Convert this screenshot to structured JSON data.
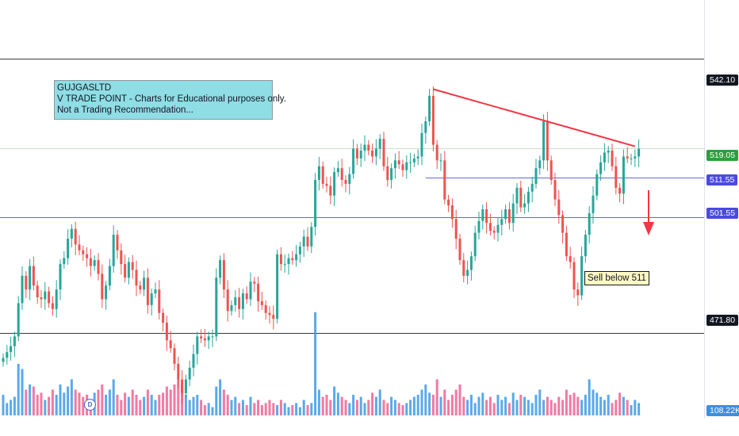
{
  "annotation_box": {
    "line1": "GUJGASLTD",
    "line2": "V TRADE POINT - Charts for Educational purposes only.",
    "line3": "Not a Trading Recommendation..."
  },
  "callout": {
    "text": "Sell below 511"
  },
  "dividend_marker": {
    "text": "D"
  },
  "price_scale": {
    "tags": [
      {
        "label": "542.10",
        "color": "#131722"
      },
      {
        "label": "519.05",
        "color": "#2e9e3e"
      },
      {
        "label": "511.55",
        "color": "#4a4ae0"
      },
      {
        "label": "501.55",
        "color": "#4a4ae0"
      },
      {
        "label": "471.80",
        "color": "#131722"
      }
    ],
    "volume_label": "108.22K"
  },
  "chart_data": {
    "type": "candlestick",
    "ylim": [
      450,
      557
    ],
    "horizontal_lines": [
      {
        "price": 542.1,
        "color": "#131722",
        "style": "full"
      },
      {
        "price": 519.05,
        "color": "#2e9e3e",
        "style": "full-thin"
      },
      {
        "price": 511.55,
        "color": "#4a4ae0",
        "style": "partial"
      },
      {
        "price": 501.55,
        "color": "#4a4ae0",
        "style": "full"
      },
      {
        "price": 471.8,
        "color": "#131722",
        "style": "full"
      }
    ],
    "trendline": {
      "from_bar": 113,
      "from_price": 534.2,
      "to_bar": 166,
      "to_price": 519.6,
      "color": "#f23645"
    },
    "colors": {
      "up": "#26a69a",
      "down": "#ef5350",
      "up_volume": "#3d9ae6",
      "down_volume": "#f06292"
    },
    "close": [
      465.5,
      467.0,
      468.5,
      471.0,
      479.5,
      486.5,
      483.0,
      489.0,
      484.0,
      481.0,
      480.5,
      482.5,
      479.5,
      478.0,
      483.0,
      489.5,
      491.0,
      496.0,
      498.5,
      494.5,
      493.0,
      492.0,
      491.0,
      489.0,
      490.5,
      487.0,
      480.5,
      484.0,
      489.0,
      497.0,
      493.0,
      489.5,
      486.0,
      490.0,
      488.0,
      484.0,
      483.0,
      486.0,
      479.0,
      482.0,
      483.0,
      477.0,
      474.5,
      470.0,
      468.0,
      464.0,
      460.0,
      456.5,
      460.0,
      463.0,
      466.5,
      471.0,
      470.5,
      470.0,
      471.0,
      471.0,
      486.0,
      490.5,
      483.0,
      477.5,
      479.0,
      481.0,
      478.0,
      482.0,
      480.5,
      485.0,
      484.5,
      480.0,
      479.0,
      477.0,
      476.5,
      475.5,
      492.0,
      489.5,
      489.5,
      491.0,
      490.5,
      492.0,
      494.0,
      496.5,
      494.0,
      499.0,
      511.0,
      514.5,
      510.0,
      509.5,
      507.0,
      513.0,
      514.0,
      511.0,
      510.0,
      512.5,
      519.0,
      516.5,
      518.5,
      520.0,
      518.5,
      517.0,
      519.0,
      521.5,
      514.5,
      511.0,
      514.0,
      516.0,
      515.0,
      513.5,
      515.5,
      515.5,
      516.5,
      517.0,
      523.0,
      526.0,
      532.5,
      520.0,
      516.0,
      516.0,
      506.0,
      504.5,
      501.0,
      496.0,
      490.5,
      486.5,
      488.0,
      491.5,
      497.5,
      500.5,
      503.5,
      500.0,
      498.0,
      497.5,
      499.5,
      501.0,
      503.5,
      500.0,
      505.0,
      509.0,
      504.0,
      505.0,
      508.0,
      510.0,
      514.0,
      516.0,
      526.0,
      516.0,
      511.0,
      506.0,
      502.0,
      497.5,
      491.5,
      490.0,
      483.0,
      481.5,
      491.5,
      497.0,
      502.5,
      507.0,
      512.5,
      515.5,
      518.0,
      518.5,
      514.5,
      509.0,
      507.5,
      517.0,
      516.5,
      516.5,
      517.0,
      519.0
    ],
    "volume": [
      20,
      12,
      15,
      18,
      50,
      45,
      25,
      30,
      28,
      20,
      22,
      15,
      18,
      25,
      20,
      30,
      22,
      28,
      35,
      25,
      22,
      18,
      20,
      15,
      22,
      25,
      30,
      20,
      25,
      35,
      20,
      15,
      22,
      18,
      25,
      20,
      15,
      18,
      25,
      20,
      15,
      20,
      22,
      28,
      25,
      30,
      35,
      30,
      20,
      15,
      18,
      20,
      15,
      10,
      12,
      8,
      28,
      35,
      25,
      20,
      15,
      18,
      12,
      15,
      10,
      18,
      12,
      15,
      10,
      12,
      15,
      12,
      10,
      15,
      12,
      8,
      10,
      12,
      8,
      15,
      10,
      12,
      100,
      25,
      18,
      20,
      15,
      28,
      22,
      18,
      15,
      12,
      20,
      15,
      18,
      12,
      15,
      22,
      18,
      25,
      15,
      12,
      18,
      15,
      12,
      10,
      12,
      15,
      18,
      20,
      25,
      30,
      22,
      20,
      35,
      18,
      25,
      15,
      20,
      25,
      30,
      18,
      15,
      20,
      12,
      18,
      22,
      15,
      18,
      12,
      20,
      15,
      18,
      12,
      22,
      15,
      20,
      18,
      15,
      12,
      20,
      25,
      15,
      18,
      15,
      12,
      18,
      15,
      25,
      20,
      22,
      18,
      15,
      20,
      35,
      25,
      22,
      18,
      15,
      20,
      12,
      15,
      22,
      18,
      15,
      10,
      15,
      12
    ]
  }
}
